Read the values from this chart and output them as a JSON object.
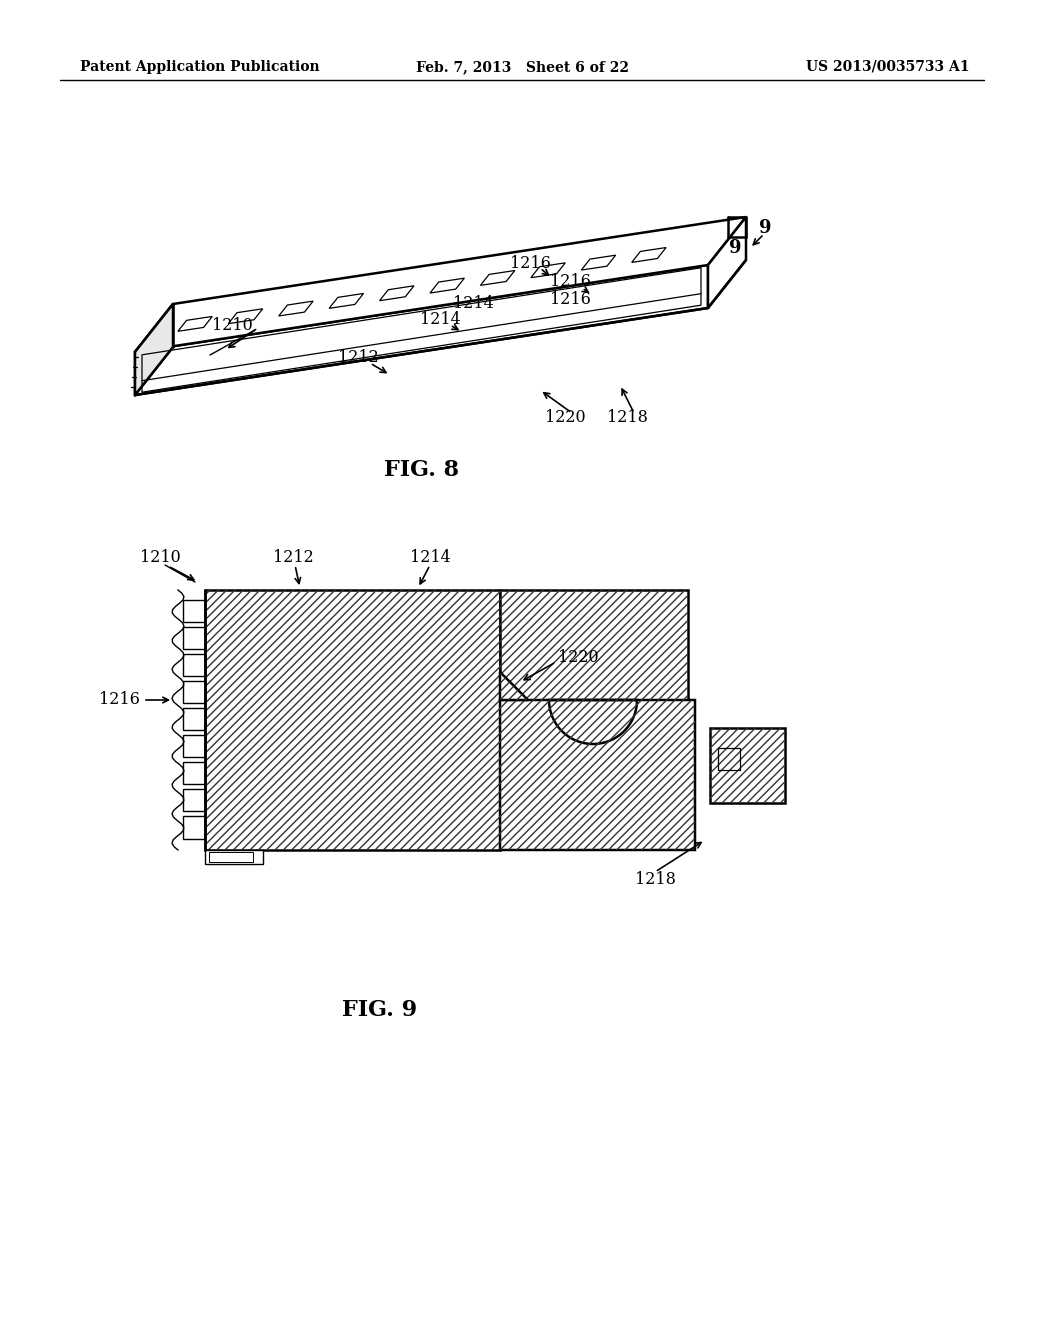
{
  "background_color": "#ffffff",
  "header_left": "Patent Application Publication",
  "header_center": "Feb. 7, 2013   Sheet 6 of 22",
  "header_right": "US 2013/0035733 A1",
  "fig8_label": "FIG. 8",
  "fig9_label": "FIG. 9",
  "text_color": "#000000",
  "line_color": "#000000"
}
